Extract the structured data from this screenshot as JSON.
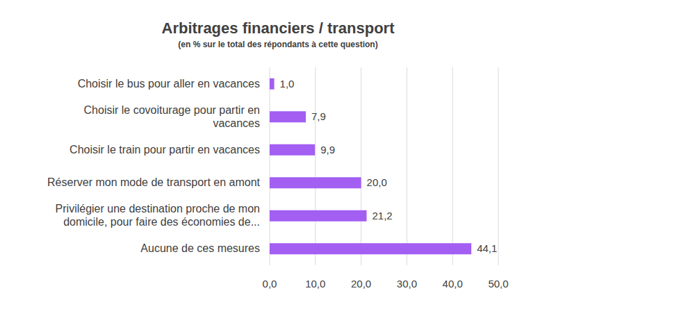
{
  "chart_data": {
    "type": "bar",
    "orientation": "horizontal",
    "title": "Arbitrages financiers / transport",
    "subtitle": "(en % sur le total des répondants à cette question)",
    "categories": [
      "Choisir le bus pour aller en vacances",
      "Choisir le covoiturage pour partir en vacances",
      "Choisir le train pour partir en vacances",
      "Réserver mon mode de transport en amont",
      "Privilégier une destination proche de mon domicile, pour faire des économies de...",
      "Aucune de ces mesures"
    ],
    "values": [
      1.0,
      7.9,
      9.9,
      20.0,
      21.2,
      44.1
    ],
    "value_labels": [
      "1,0",
      "7,9",
      "9,9",
      "20,0",
      "21,2",
      "44,1"
    ],
    "color": "#a35ef2",
    "xlim": [
      0,
      50
    ],
    "xticks": [
      {
        "value": 0,
        "label": "0,0"
      },
      {
        "value": 10,
        "label": "10,0"
      },
      {
        "value": 20,
        "label": "20,0"
      },
      {
        "value": 30,
        "label": "30,0"
      },
      {
        "value": 40,
        "label": "40,0"
      },
      {
        "value": 50,
        "label": "50,0"
      }
    ],
    "grid": true,
    "data_labels": true
  }
}
